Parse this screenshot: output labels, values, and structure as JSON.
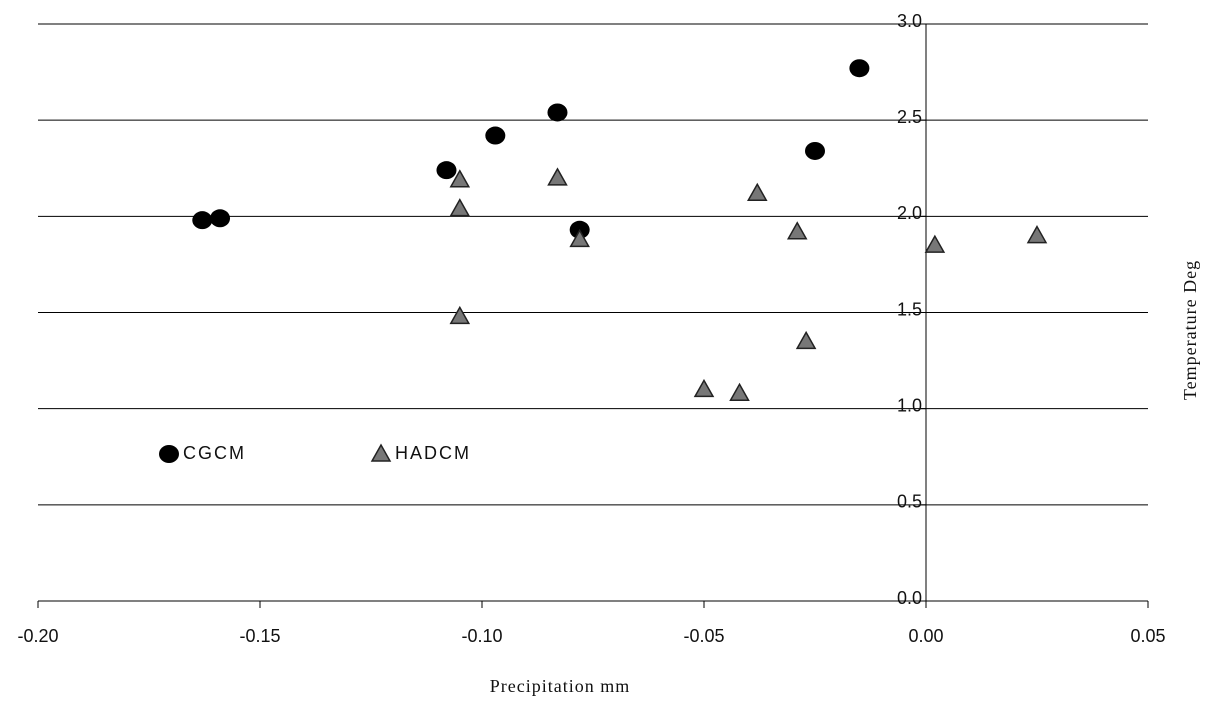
{
  "chart_data": {
    "type": "scatter",
    "x_label": "Precipitation mm",
    "y_label": "Temperature Deg",
    "xlim": [
      -0.2,
      0.05
    ],
    "xticks": [
      {
        "value": -0.2,
        "label": "-0.20"
      },
      -0.15,
      {
        "value": -0.1,
        "label": "-0.10"
      },
      -0.05,
      {
        "value": 0,
        "label": "0.00"
      },
      0.05
    ],
    "ylim": [
      0,
      3
    ],
    "yticks": [
      {
        "value": 0,
        "label": "0.0"
      },
      0.5,
      {
        "value": 1,
        "label": "1.0"
      },
      1.5,
      {
        "value": 2,
        "label": "2.0"
      },
      2.5,
      {
        "value": 3,
        "label": "3.0"
      }
    ],
    "grid": true,
    "series": [
      {
        "name": "CGCM",
        "color": "#000000",
        "marker": "circle",
        "x": [
          -0.163,
          -0.159,
          -0.108,
          -0.097,
          -0.083,
          -0.078,
          -0.025,
          -0.015
        ],
        "values": [
          1.98,
          1.99,
          2.24,
          2.42,
          2.54,
          1.93,
          2.34,
          2.77
        ]
      },
      {
        "name": "HADCM",
        "color": "#777777",
        "marker": "triangle",
        "x": [
          -0.105,
          -0.105,
          -0.105,
          -0.083,
          -0.078,
          -0.05,
          -0.042,
          -0.038,
          -0.029,
          -0.027,
          0.002,
          0.025
        ],
        "values": [
          2.19,
          2.04,
          1.48,
          2.2,
          1.88,
          1.1,
          1.08,
          2.12,
          1.92,
          1.35,
          1.85,
          1.9
        ]
      }
    ]
  }
}
